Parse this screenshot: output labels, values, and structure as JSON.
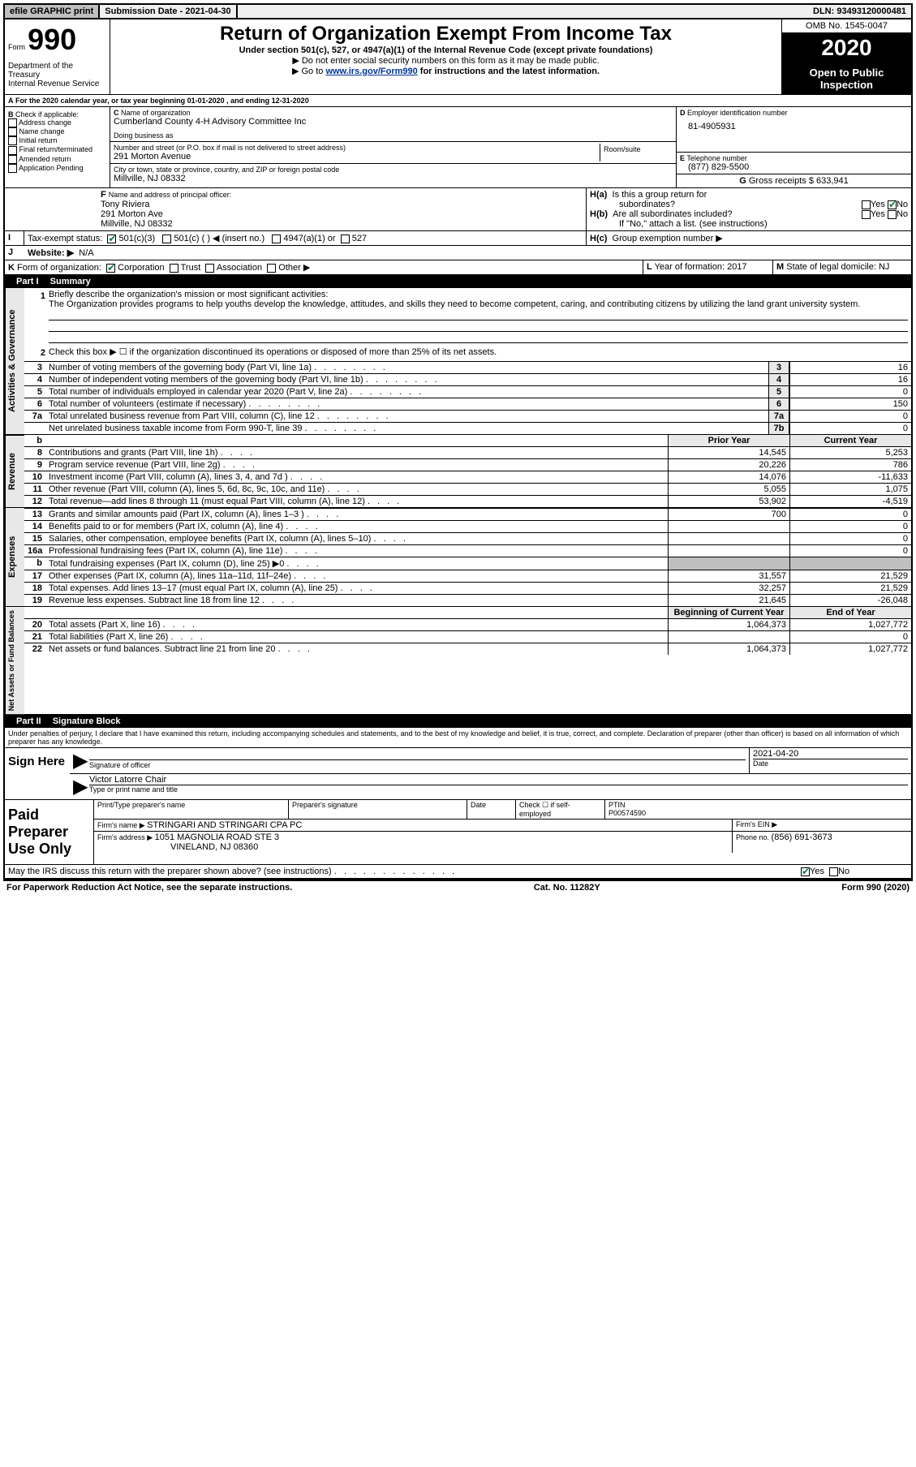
{
  "topbar": {
    "efile": "efile GRAPHIC print",
    "submission_label": "Submission Date - ",
    "submission_date": "2021-04-30",
    "dln_label": "DLN: ",
    "dln": "93493120000481"
  },
  "header": {
    "form_label": "Form",
    "form_number": "990",
    "dept1": "Department of the Treasury",
    "dept2": "Internal Revenue Service",
    "title": "Return of Organization Exempt From Income Tax",
    "subtitle": "Under section 501(c), 527, or 4947(a)(1) of the Internal Revenue Code (except private foundations)",
    "note1": "Do not enter social security numbers on this form as it may be made public.",
    "note2_pre": "Go to ",
    "note2_link": "www.irs.gov/Form990",
    "note2_post": " for instructions and the latest information.",
    "omb": "OMB No. 1545-0047",
    "year": "2020",
    "open": "Open to Public Inspection"
  },
  "A": {
    "text": "For the 2020 calendar year, or tax year beginning ",
    "begin": "01-01-2020",
    "mid": " , and ending ",
    "end": "12-31-2020"
  },
  "B": {
    "label": "Check if applicable:",
    "addr": "Address change",
    "name": "Name change",
    "init": "Initial return",
    "final": "Final return/terminated",
    "amend": "Amended return",
    "app": "Application Pending"
  },
  "C": {
    "name_label": "Name of organization",
    "name": "Cumberland County 4-H Advisory Committee Inc",
    "dba_label": "Doing business as",
    "street_label": "Number and street (or P.O. box if mail is not delivered to street address)",
    "street": "291 Morton Avenue",
    "room_label": "Room/suite",
    "city_label": "City or town, state or province, country, and ZIP or foreign postal code",
    "city": "Millville, NJ  08332"
  },
  "D": {
    "label": "Employer identification number",
    "val": "81-4905931"
  },
  "E": {
    "label": "Telephone number",
    "val": "(877) 829-5500"
  },
  "G": {
    "label": "Gross receipts $ ",
    "val": "633,941"
  },
  "F": {
    "label": "Name and address of principal officer:",
    "name": "Tony Riviera",
    "addr1": "291 Morton Ave",
    "addr2": "Millville, NJ  08332"
  },
  "H": {
    "a1": "Is this a group return for",
    "a2": "subordinates?",
    "b1": "Are all subordinates included?",
    "note": "If \"No,\" attach a list. (see instructions)",
    "c": "Group exemption number ▶",
    "yes": "Yes",
    "no": "No"
  },
  "I": {
    "label": "Tax-exempt status:",
    "c1": "501(c)(3)",
    "c2": "501(c) (  ) ◀ (insert no.)",
    "c3": "4947(a)(1) or",
    "c4": "527"
  },
  "J": {
    "label": "Website: ▶",
    "val": "N/A"
  },
  "K": {
    "label": "Form of organization:",
    "corp": "Corporation",
    "trust": "Trust",
    "assoc": "Association",
    "other": "Other ▶"
  },
  "L": {
    "label": "Year of formation: ",
    "val": "2017"
  },
  "M": {
    "label": "State of legal domicile: ",
    "val": "NJ"
  },
  "part1": {
    "label": "Part I",
    "title": "Summary",
    "sections": {
      "ag": "Activities & Governance",
      "rev": "Revenue",
      "exp": "Expenses",
      "na": "Net Assets or Fund Balances"
    },
    "l1": {
      "desc": "Briefly describe the organization's mission or most significant activities:",
      "text": "The Organization provides programs to help youths develop the knowledge, attitudes, and skills they need to become competent, caring, and contributing citizens by utilizing the land grant university system."
    },
    "l2": "Check this box ▶ ☐  if the organization discontinued its operations or disposed of more than 25% of its net assets.",
    "rows": [
      {
        "n": "3",
        "d": "Number of voting members of the governing body (Part VI, line 1a)",
        "box": "3",
        "v": "16"
      },
      {
        "n": "4",
        "d": "Number of independent voting members of the governing body (Part VI, line 1b)",
        "box": "4",
        "v": "16"
      },
      {
        "n": "5",
        "d": "Total number of individuals employed in calendar year 2020 (Part V, line 2a)",
        "box": "5",
        "v": "0"
      },
      {
        "n": "6",
        "d": "Total number of volunteers (estimate if necessary)",
        "box": "6",
        "v": "150"
      },
      {
        "n": "7a",
        "d": "Total unrelated business revenue from Part VIII, column (C), line 12",
        "box": "7a",
        "v": "0"
      },
      {
        "n": "",
        "d": "Net unrelated business taxable income from Form 990-T, line 39",
        "box": "7b",
        "v": "0"
      }
    ],
    "prior_label": "Prior Year",
    "current_label": "Current Year",
    "rev_rows": [
      {
        "n": "8",
        "d": "Contributions and grants (Part VIII, line 1h)",
        "p": "14,545",
        "c": "5,253"
      },
      {
        "n": "9",
        "d": "Program service revenue (Part VIII, line 2g)",
        "p": "20,226",
        "c": "786"
      },
      {
        "n": "10",
        "d": "Investment income (Part VIII, column (A), lines 3, 4, and 7d )",
        "p": "14,076",
        "c": "-11,633"
      },
      {
        "n": "11",
        "d": "Other revenue (Part VIII, column (A), lines 5, 6d, 8c, 9c, 10c, and 11e)",
        "p": "5,055",
        "c": "1,075"
      },
      {
        "n": "12",
        "d": "Total revenue—add lines 8 through 11 (must equal Part VIII, column (A), line 12)",
        "p": "53,902",
        "c": "-4,519"
      }
    ],
    "exp_rows": [
      {
        "n": "13",
        "d": "Grants and similar amounts paid (Part IX, column (A), lines 1–3 )",
        "p": "700",
        "c": "0"
      },
      {
        "n": "14",
        "d": "Benefits paid to or for members (Part IX, column (A), line 4)",
        "p": "",
        "c": "0"
      },
      {
        "n": "15",
        "d": "Salaries, other compensation, employee benefits (Part IX, column (A), lines 5–10)",
        "p": "",
        "c": "0"
      },
      {
        "n": "16a",
        "d": "Professional fundraising fees (Part IX, column (A), line 11e)",
        "p": "",
        "c": "0"
      },
      {
        "n": "b",
        "d": "Total fundraising expenses (Part IX, column (D), line 25) ▶0",
        "p": "",
        "c": "",
        "shade": true
      },
      {
        "n": "17",
        "d": "Other expenses (Part IX, column (A), lines 11a–11d, 11f–24e)",
        "p": "31,557",
        "c": "21,529"
      },
      {
        "n": "18",
        "d": "Total expenses. Add lines 13–17 (must equal Part IX, column (A), line 25)",
        "p": "32,257",
        "c": "21,529"
      },
      {
        "n": "19",
        "d": "Revenue less expenses. Subtract line 18 from line 12",
        "p": "21,645",
        "c": "-26,048"
      }
    ],
    "begin_label": "Beginning of Current Year",
    "end_label": "End of Year",
    "na_rows": [
      {
        "n": "20",
        "d": "Total assets (Part X, line 16)",
        "p": "1,064,373",
        "c": "1,027,772"
      },
      {
        "n": "21",
        "d": "Total liabilities (Part X, line 26)",
        "p": "",
        "c": "0"
      },
      {
        "n": "22",
        "d": "Net assets or fund balances. Subtract line 21 from line 20",
        "p": "1,064,373",
        "c": "1,027,772"
      }
    ]
  },
  "part2": {
    "label": "Part II",
    "title": "Signature Block",
    "decl": "Under penalties of perjury, I declare that I have examined this return, including accompanying schedules and statements, and to the best of my knowledge and belief, it is true, correct, and complete. Declaration of preparer (other than officer) is based on all information of which preparer has any knowledge."
  },
  "sign": {
    "here": "Sign Here",
    "sig_label": "Signature of officer",
    "date_label": "Date",
    "date": "2021-04-20",
    "name": "Victor Latorre Chair",
    "name_label": "Type or print name and title"
  },
  "paid": {
    "left": "Paid Preparer Use Only",
    "p1": "Print/Type preparer's name",
    "p2": "Preparer's signature",
    "p3": "Date",
    "check_label": "Check ☐ if self-employed",
    "ptin_label": "PTIN",
    "ptin": "P00574590",
    "firm_name_label": "Firm's name    ▶ ",
    "firm_name": "STRINGARI AND STRINGARI CPA PC",
    "firm_ein_label": "Firm's EIN ▶",
    "firm_addr_label": "Firm's address ▶ ",
    "firm_addr1": "1051 MAGNOLIA ROAD STE 3",
    "firm_addr2": "VINELAND, NJ  08360",
    "phone_label": "Phone no. ",
    "phone": "(856) 691-3673"
  },
  "may_discuss": "May the IRS discuss this return with the preparer shown above? (see instructions)",
  "footer": {
    "left": "For Paperwork Reduction Act Notice, see the separate instructions.",
    "mid": "Cat. No. 11282Y",
    "right": "Form 990 (2020)"
  }
}
